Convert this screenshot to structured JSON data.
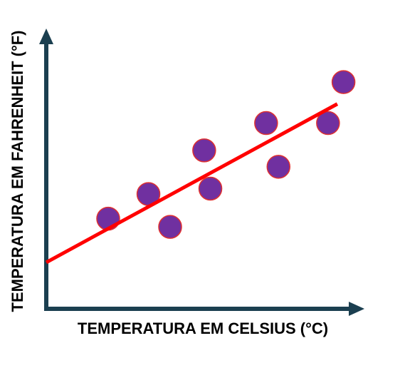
{
  "chart_data": {
    "type": "scatter",
    "x_label": "TEMPERATURA EM CELSIUS (°C)",
    "y_label": "TEMPERATURA EM FAHRENHEIT (°F)",
    "x": [
      20,
      33,
      40,
      51,
      53,
      71,
      75,
      91,
      96
    ],
    "values": [
      33,
      42,
      30,
      58,
      44,
      68,
      52,
      68,
      83
    ],
    "color": "#7030a0",
    "xlim": [
      0,
      100
    ],
    "ylim": [
      0,
      100
    ],
    "trend_line": {
      "x": [
        0,
        94
      ],
      "values": [
        17,
        75
      ],
      "color": "#ff0000"
    },
    "axis_color": "#1b3f50"
  }
}
